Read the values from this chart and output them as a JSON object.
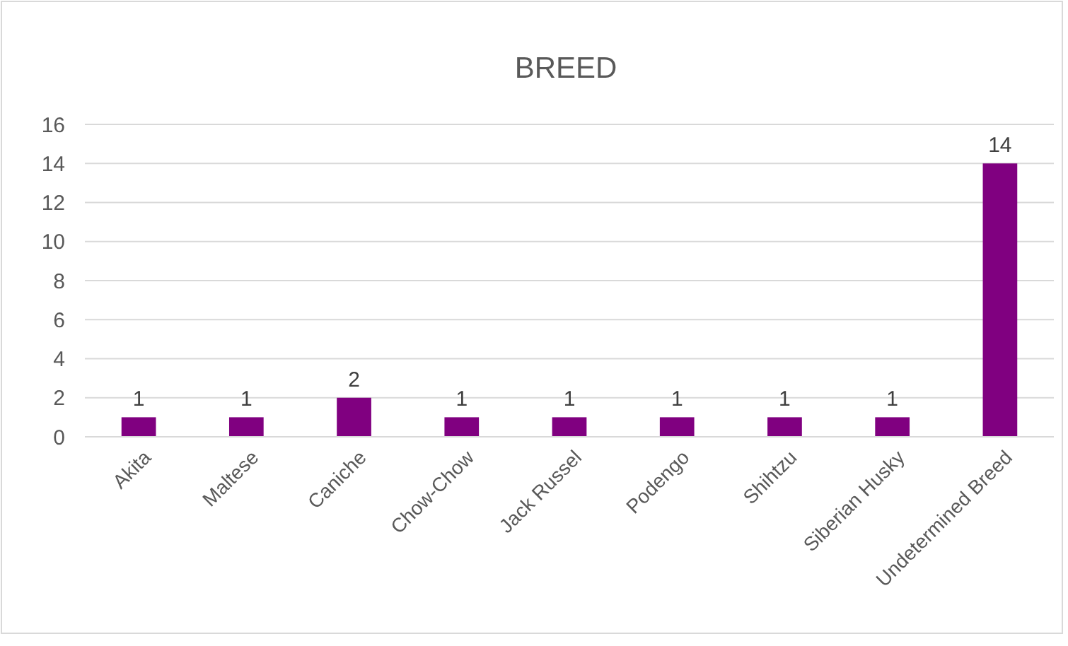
{
  "chart_data": {
    "type": "bar",
    "title": "BREED",
    "categories": [
      "Akita",
      "Maltese",
      "Caniche",
      "Chow-Chow",
      "Jack Russel",
      "Podengo",
      "Shihtzu",
      "Siberian Husky",
      "Undetermined Breed"
    ],
    "values": [
      1,
      1,
      2,
      1,
      1,
      1,
      1,
      1,
      14
    ],
    "color": "#800080",
    "ylim": [
      0,
      16
    ],
    "yticks": [
      0,
      2,
      4,
      6,
      8,
      10,
      12,
      14,
      16
    ],
    "grid": "y",
    "data_labels": true
  }
}
